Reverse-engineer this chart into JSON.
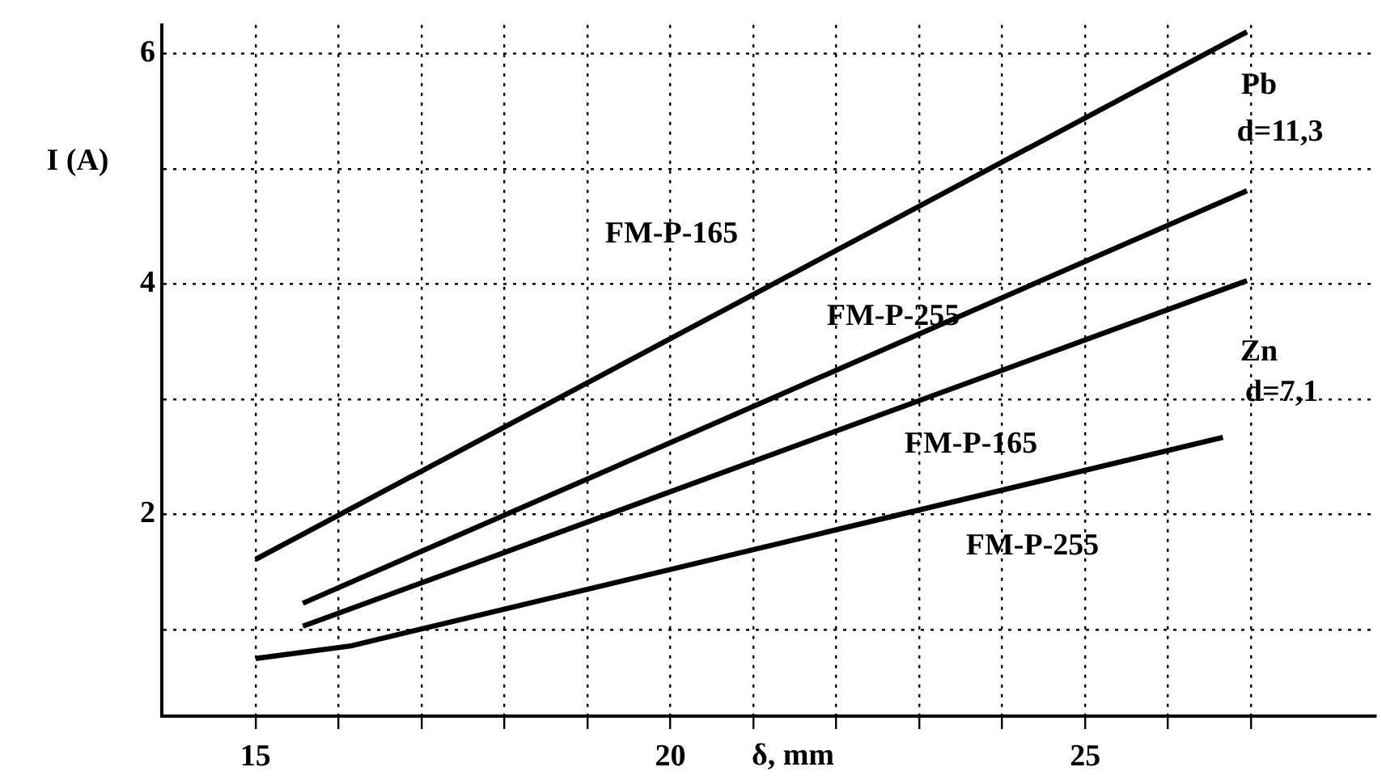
{
  "chart_data": {
    "type": "line",
    "xlabel": "δ, mm",
    "ylabel": "I (A)",
    "xlim": [
      13.87,
      28.5
    ],
    "ylim": [
      0.25,
      6.25
    ],
    "xticks": [
      15,
      {
        "value": 16,
        "label": null
      },
      {
        "value": 17,
        "label": null
      },
      {
        "value": 18,
        "label": null
      },
      {
        "value": 19,
        "label": null
      },
      20,
      {
        "value": 21,
        "label": null
      },
      {
        "value": 22,
        "label": null
      },
      {
        "value": 23,
        "label": null
      },
      {
        "value": 24,
        "label": null
      },
      25,
      {
        "value": 26,
        "label": null
      },
      {
        "value": 27,
        "label": null
      }
    ],
    "yticks": [
      {
        "value": 1,
        "label": null
      },
      2,
      {
        "value": 3,
        "label": null
      },
      4,
      {
        "value": 5,
        "label": null
      },
      6
    ],
    "grid": true,
    "marker": "none",
    "line_style": "solid",
    "legend": false,
    "series": [
      {
        "name": "FM-P-165",
        "color": "#000000",
        "x": [
          15.0,
          26.95
        ],
        "values": [
          1.61,
          6.19
        ]
      },
      {
        "name": "FM-P-255",
        "color": "#000000",
        "x": [
          15.57,
          26.95
        ],
        "values": [
          1.23,
          4.81
        ]
      },
      {
        "name": "FM-P-165",
        "color": "#000000",
        "x": [
          15.57,
          26.95
        ],
        "values": [
          1.03,
          4.03
        ]
      },
      {
        "name": "FM-P-255",
        "color": "#000000",
        "x": [
          15.0,
          16.15,
          26.66
        ],
        "values": [
          0.75,
          0.86,
          2.67
        ]
      }
    ],
    "annotations": [
      "Pb",
      "d=11,3",
      "Zn",
      "d=7,1"
    ]
  }
}
